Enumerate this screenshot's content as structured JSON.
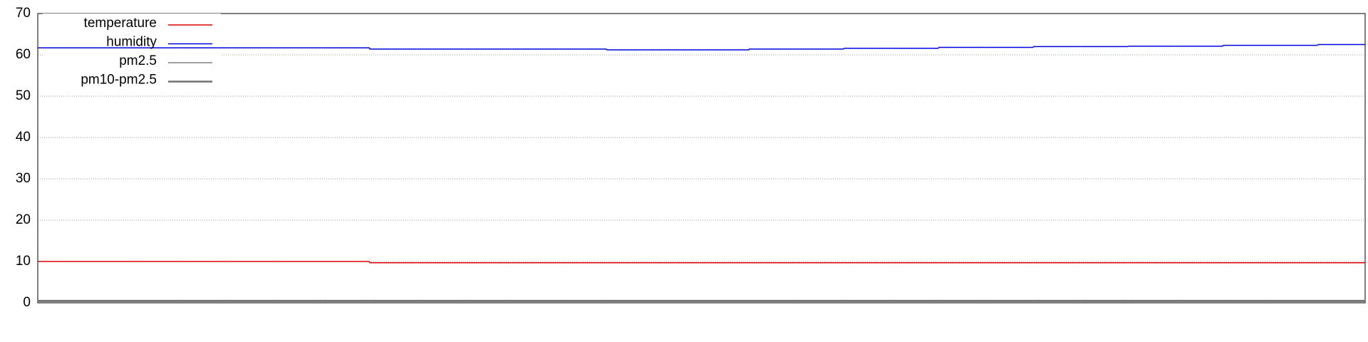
{
  "chart_data": {
    "type": "step",
    "categories": [
      null,
      null,
      null,
      null,
      null,
      null,
      null,
      null,
      null,
      null,
      null,
      null,
      null,
      null,
      null,
      null,
      null,
      null,
      null,
      null,
      null,
      null,
      null,
      null,
      null,
      null,
      null,
      null
    ],
    "series": [
      {
        "name": "temperature",
        "color": "#e00000",
        "width": 1.5,
        "values": [
          10.0,
          10.0,
          10.0,
          10.0,
          10.0,
          10.0,
          10.0,
          9.7,
          9.7,
          9.7,
          9.7,
          9.7,
          9.7,
          9.7,
          9.7,
          9.7,
          9.7,
          9.7,
          9.7,
          9.7,
          9.7,
          9.7,
          9.7,
          9.7,
          9.7,
          9.7,
          9.7,
          9.7
        ]
      },
      {
        "name": "humidity",
        "color": "#0000e0",
        "width": 1.5,
        "values": [
          61.7,
          61.7,
          61.7,
          61.7,
          61.7,
          61.7,
          61.7,
          61.4,
          61.4,
          61.4,
          61.4,
          61.4,
          61.2,
          61.2,
          61.2,
          61.4,
          61.4,
          61.6,
          61.6,
          61.8,
          61.8,
          62.0,
          62.0,
          62.1,
          62.1,
          62.3,
          62.3,
          62.5
        ]
      },
      {
        "name": "pm2.5",
        "color": "#808080",
        "width": 1.5,
        "values": [
          0.3,
          0.3,
          0.3,
          0.3,
          0.3,
          0.3,
          0.3,
          0.3,
          0.3,
          0.3,
          0.3,
          0.3,
          0.3,
          0.3,
          0.3,
          0.3,
          0.3,
          0.3,
          0.3,
          0.3,
          0.3,
          0.3,
          0.3,
          0.3,
          0.3,
          0.3,
          0.3,
          0.3
        ]
      },
      {
        "name": "pm10-pm2.5",
        "color": "#707070",
        "width": 2.5,
        "values": [
          0.5,
          0.5,
          0.5,
          0.5,
          0.5,
          0.5,
          0.5,
          0.5,
          0.5,
          0.5,
          0.5,
          0.5,
          0.5,
          0.5,
          0.5,
          0.5,
          0.5,
          0.5,
          0.5,
          0.5,
          0.5,
          0.5,
          0.5,
          0.5,
          0.5,
          0.5,
          0.5,
          0.5
        ]
      }
    ],
    "ylim": [
      0,
      70
    ],
    "yticks": [
      0,
      10,
      20,
      30,
      40,
      50,
      60,
      70
    ],
    "grid": true,
    "legend": "top-left"
  }
}
